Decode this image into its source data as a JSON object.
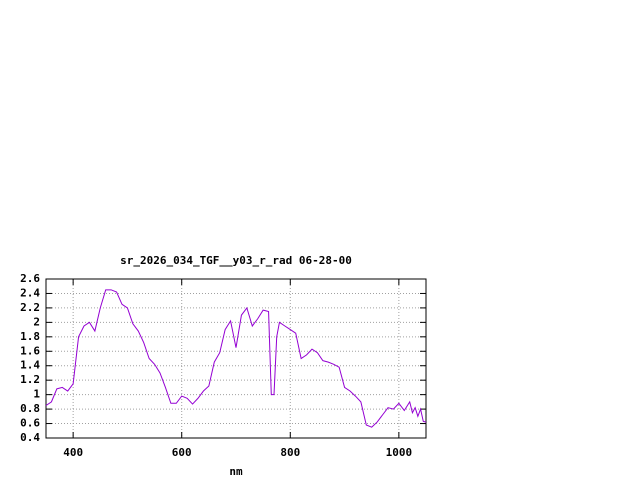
{
  "chart_data": {
    "type": "line",
    "title": "sr_2026_034_TGF__y03_r_rad 06-28-00",
    "x_label": "nm",
    "x": [
      350,
      360,
      370,
      380,
      390,
      400,
      410,
      420,
      430,
      440,
      450,
      460,
      470,
      480,
      490,
      500,
      510,
      520,
      530,
      540,
      550,
      560,
      570,
      580,
      590,
      600,
      610,
      620,
      630,
      640,
      650,
      660,
      670,
      680,
      690,
      700,
      710,
      720,
      730,
      740,
      750,
      760,
      765,
      770,
      775,
      780,
      790,
      800,
      810,
      820,
      830,
      840,
      850,
      860,
      870,
      880,
      890,
      900,
      910,
      920,
      930,
      940,
      950,
      960,
      970,
      980,
      990,
      1000,
      1010,
      1020,
      1025,
      1030,
      1035,
      1040,
      1045,
      1050
    ],
    "values": [
      0.85,
      0.9,
      1.08,
      1.1,
      1.05,
      1.15,
      1.8,
      1.95,
      2.0,
      1.88,
      2.2,
      2.45,
      2.45,
      2.42,
      2.25,
      2.2,
      1.98,
      1.88,
      1.72,
      1.5,
      1.42,
      1.3,
      1.1,
      0.88,
      0.88,
      0.98,
      0.95,
      0.87,
      0.95,
      1.05,
      1.12,
      1.45,
      1.58,
      1.9,
      2.02,
      1.65,
      2.1,
      2.2,
      1.95,
      2.05,
      2.17,
      2.15,
      1.0,
      1.0,
      1.8,
      2.0,
      1.95,
      1.9,
      1.85,
      1.5,
      1.55,
      1.63,
      1.58,
      1.47,
      1.45,
      1.42,
      1.38,
      1.1,
      1.05,
      0.98,
      0.9,
      0.58,
      0.55,
      0.62,
      0.72,
      0.82,
      0.8,
      0.88,
      0.78,
      0.9,
      0.75,
      0.82,
      0.7,
      0.8,
      0.63,
      0.62
    ],
    "color": "#9400d3",
    "xlim": [
      350,
      1050
    ],
    "xticks": [
      400,
      600,
      800,
      1000
    ],
    "ylim": [
      0.4,
      2.6
    ],
    "yticks": [
      0.4,
      0.6,
      0.8,
      1,
      1.2,
      1.4,
      1.6,
      1.8,
      2,
      2.2,
      2.4,
      2.6
    ],
    "grid": true
  }
}
